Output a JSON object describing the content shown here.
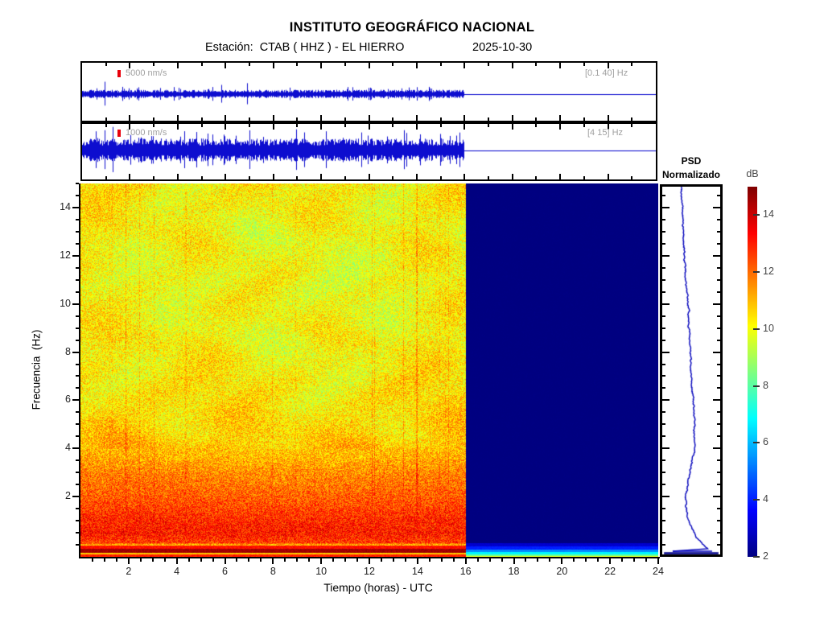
{
  "header": {
    "title": "INSTITUTO GEOGRÁFICO NACIONAL",
    "station_line": "Estación:  CTAB ( HHZ ) - EL HIERRO",
    "date": "2025-10-30"
  },
  "traces": [
    {
      "scale_label": "5000 nm/s",
      "band_label": "[0.1 40] Hz"
    },
    {
      "scale_label": "1000 nm/s",
      "band_label": "[4 15] Hz"
    }
  ],
  "axes": {
    "x_label": "Tiempo (horas) - UTC",
    "y_label": "Frecuencia  (Hz)",
    "x_ticks": [
      2,
      4,
      6,
      8,
      10,
      12,
      14,
      16,
      18,
      20,
      22,
      24
    ],
    "y_ticks": [
      2,
      4,
      6,
      8,
      10,
      12,
      14
    ]
  },
  "psd": {
    "title_line1": "PSD",
    "title_line2": "Normalizado"
  },
  "colorbar": {
    "label": "dB",
    "ticks": [
      2,
      4,
      6,
      8,
      10,
      12,
      14
    ],
    "range": [
      2,
      15
    ],
    "colormap": "jet"
  },
  "colors": {
    "trace_blue": "#0000cc",
    "psd_blue": "#0000bb",
    "no_data_navy": "#000084",
    "label_gray": "#a0a0a0",
    "marker_red": "#e8000b",
    "tick_black": "#000000"
  },
  "chart_data": [
    {
      "type": "line",
      "name": "seismogram-broadband",
      "scale": "5000 nm/s",
      "band_hz": "[0.1 40] Hz",
      "x_range_hours": [
        0,
        24
      ],
      "data_end_hour": 16,
      "description": "continuous blue seismic noise trace, flat line after 16h"
    },
    {
      "type": "line",
      "name": "seismogram-filtered",
      "scale": "1000 nm/s",
      "band_hz": "[4 15] Hz",
      "x_range_hours": [
        0,
        24
      ],
      "data_end_hour": 16,
      "description": "denser higher-amplitude blue seismic noise trace, flat line after 16h"
    },
    {
      "type": "heatmap",
      "name": "spectrogram",
      "xlabel": "Tiempo (horas) - UTC",
      "ylabel": "Frecuencia  (Hz)",
      "x_ticks": [
        2,
        4,
        6,
        8,
        10,
        12,
        14,
        16,
        18,
        20,
        22,
        24
      ],
      "y_ticks": [
        2,
        4,
        6,
        8,
        10,
        12,
        14
      ],
      "x_range_hours": [
        0,
        24
      ],
      "y_range_hz": [
        -0.5,
        15.0
      ],
      "data_end_hour": 16,
      "value_range_db": [
        2,
        15
      ],
      "no_data_value_db": 2,
      "noise_amp_db": 1.15,
      "freq_profile_db": [
        {
          "f": -0.5,
          "db": 13.2
        },
        {
          "f": -0.3,
          "db": 13.0
        },
        {
          "f": -0.22,
          "db": 14.55
        },
        {
          "f": -0.07,
          "db": 14.45
        },
        {
          "f": 0.0,
          "db": 10.8
        },
        {
          "f": 0.1,
          "db": 12.6
        },
        {
          "f": 0.5,
          "db": 13.1
        },
        {
          "f": 1.0,
          "db": 12.9
        },
        {
          "f": 1.6,
          "db": 12.45
        },
        {
          "f": 2.4,
          "db": 11.95
        },
        {
          "f": 3.0,
          "db": 11.65
        },
        {
          "f": 3.7,
          "db": 11.05
        },
        {
          "f": 4.5,
          "db": 10.7
        },
        {
          "f": 6.0,
          "db": 10.4
        },
        {
          "f": 8.0,
          "db": 10.15
        },
        {
          "f": 11.0,
          "db": 10.0
        },
        {
          "f": 13.0,
          "db": 10.05
        },
        {
          "f": 15.0,
          "db": 10.3
        }
      ],
      "data_bottom_rows_db": [
        13.0,
        13.0,
        13.0,
        10.8,
        10.8,
        14.55,
        14.55,
        14.55,
        14.55,
        14.55,
        13.2,
        13.2,
        13.2,
        13.2
      ],
      "no_data_bottom_rows_db": [
        9.8,
        8.2,
        8.2,
        6.8,
        6.8,
        6.8,
        5.4,
        5.4,
        5.4,
        4.0,
        4.0,
        4.0,
        4.0,
        3.0,
        3.0,
        3.0,
        3.0
      ]
    },
    {
      "type": "line",
      "name": "psd-normalized-profile",
      "title": "PSD Normalizado",
      "profile_frac": [
        [
          0,
          0.33
        ],
        [
          0.05,
          0.345
        ],
        [
          0.12,
          0.36
        ],
        [
          0.2,
          0.385
        ],
        [
          0.28,
          0.415
        ],
        [
          0.33,
          0.45
        ],
        [
          0.4,
          0.47
        ],
        [
          0.48,
          0.49
        ],
        [
          0.55,
          0.52
        ],
        [
          0.6,
          0.545
        ],
        [
          0.66,
          0.555
        ],
        [
          0.72,
          0.55
        ],
        [
          0.76,
          0.5
        ],
        [
          0.8,
          0.44
        ],
        [
          0.84,
          0.41
        ],
        [
          0.87,
          0.4
        ],
        [
          0.9,
          0.45
        ],
        [
          0.93,
          0.52
        ],
        [
          0.955,
          0.6
        ],
        [
          0.975,
          0.72
        ],
        [
          0.985,
          0.8
        ]
      ]
    },
    {
      "type": "colorbar",
      "name": "db-colorbar",
      "label": "dB",
      "ticks": [
        2,
        4,
        6,
        8,
        10,
        12,
        14
      ],
      "range": [
        2,
        15
      ],
      "colormap": "jet"
    }
  ]
}
